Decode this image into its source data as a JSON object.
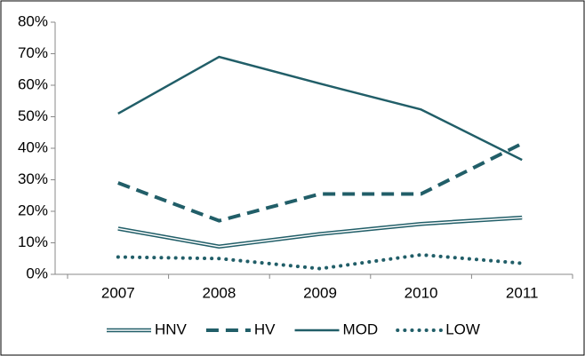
{
  "chart_data": {
    "type": "line",
    "categories": [
      "2007",
      "2008",
      "2009",
      "2010",
      "2011"
    ],
    "series": [
      {
        "name": "HNV",
        "color": "#215e68",
        "style": "double",
        "values": [
          14.5,
          8.8,
          12.8,
          16,
          18
        ]
      },
      {
        "name": "HV",
        "color": "#215e68",
        "style": "dashed",
        "values": [
          29,
          17,
          25.5,
          25.5,
          41.5
        ]
      },
      {
        "name": "MOD",
        "color": "#215e68",
        "style": "solid",
        "values": [
          51,
          69,
          60.5,
          52.3,
          36.3
        ]
      },
      {
        "name": "LOW",
        "color": "#215e68",
        "style": "dotted",
        "values": [
          5.5,
          5,
          1.8,
          6.2,
          3.5
        ]
      }
    ],
    "ylim": [
      0,
      80
    ],
    "yticks": [
      {
        "value": 0,
        "label": "0%"
      },
      {
        "value": 10,
        "label": "10%"
      },
      {
        "value": 20,
        "label": "20%"
      },
      {
        "value": 30,
        "label": "30%"
      },
      {
        "value": 40,
        "label": "40%"
      },
      {
        "value": 50,
        "label": "50%"
      },
      {
        "value": 60,
        "label": "60%"
      },
      {
        "value": 70,
        "label": "70%"
      },
      {
        "value": 80,
        "label": "80%"
      }
    ],
    "grid": false,
    "legend": "bottom"
  }
}
